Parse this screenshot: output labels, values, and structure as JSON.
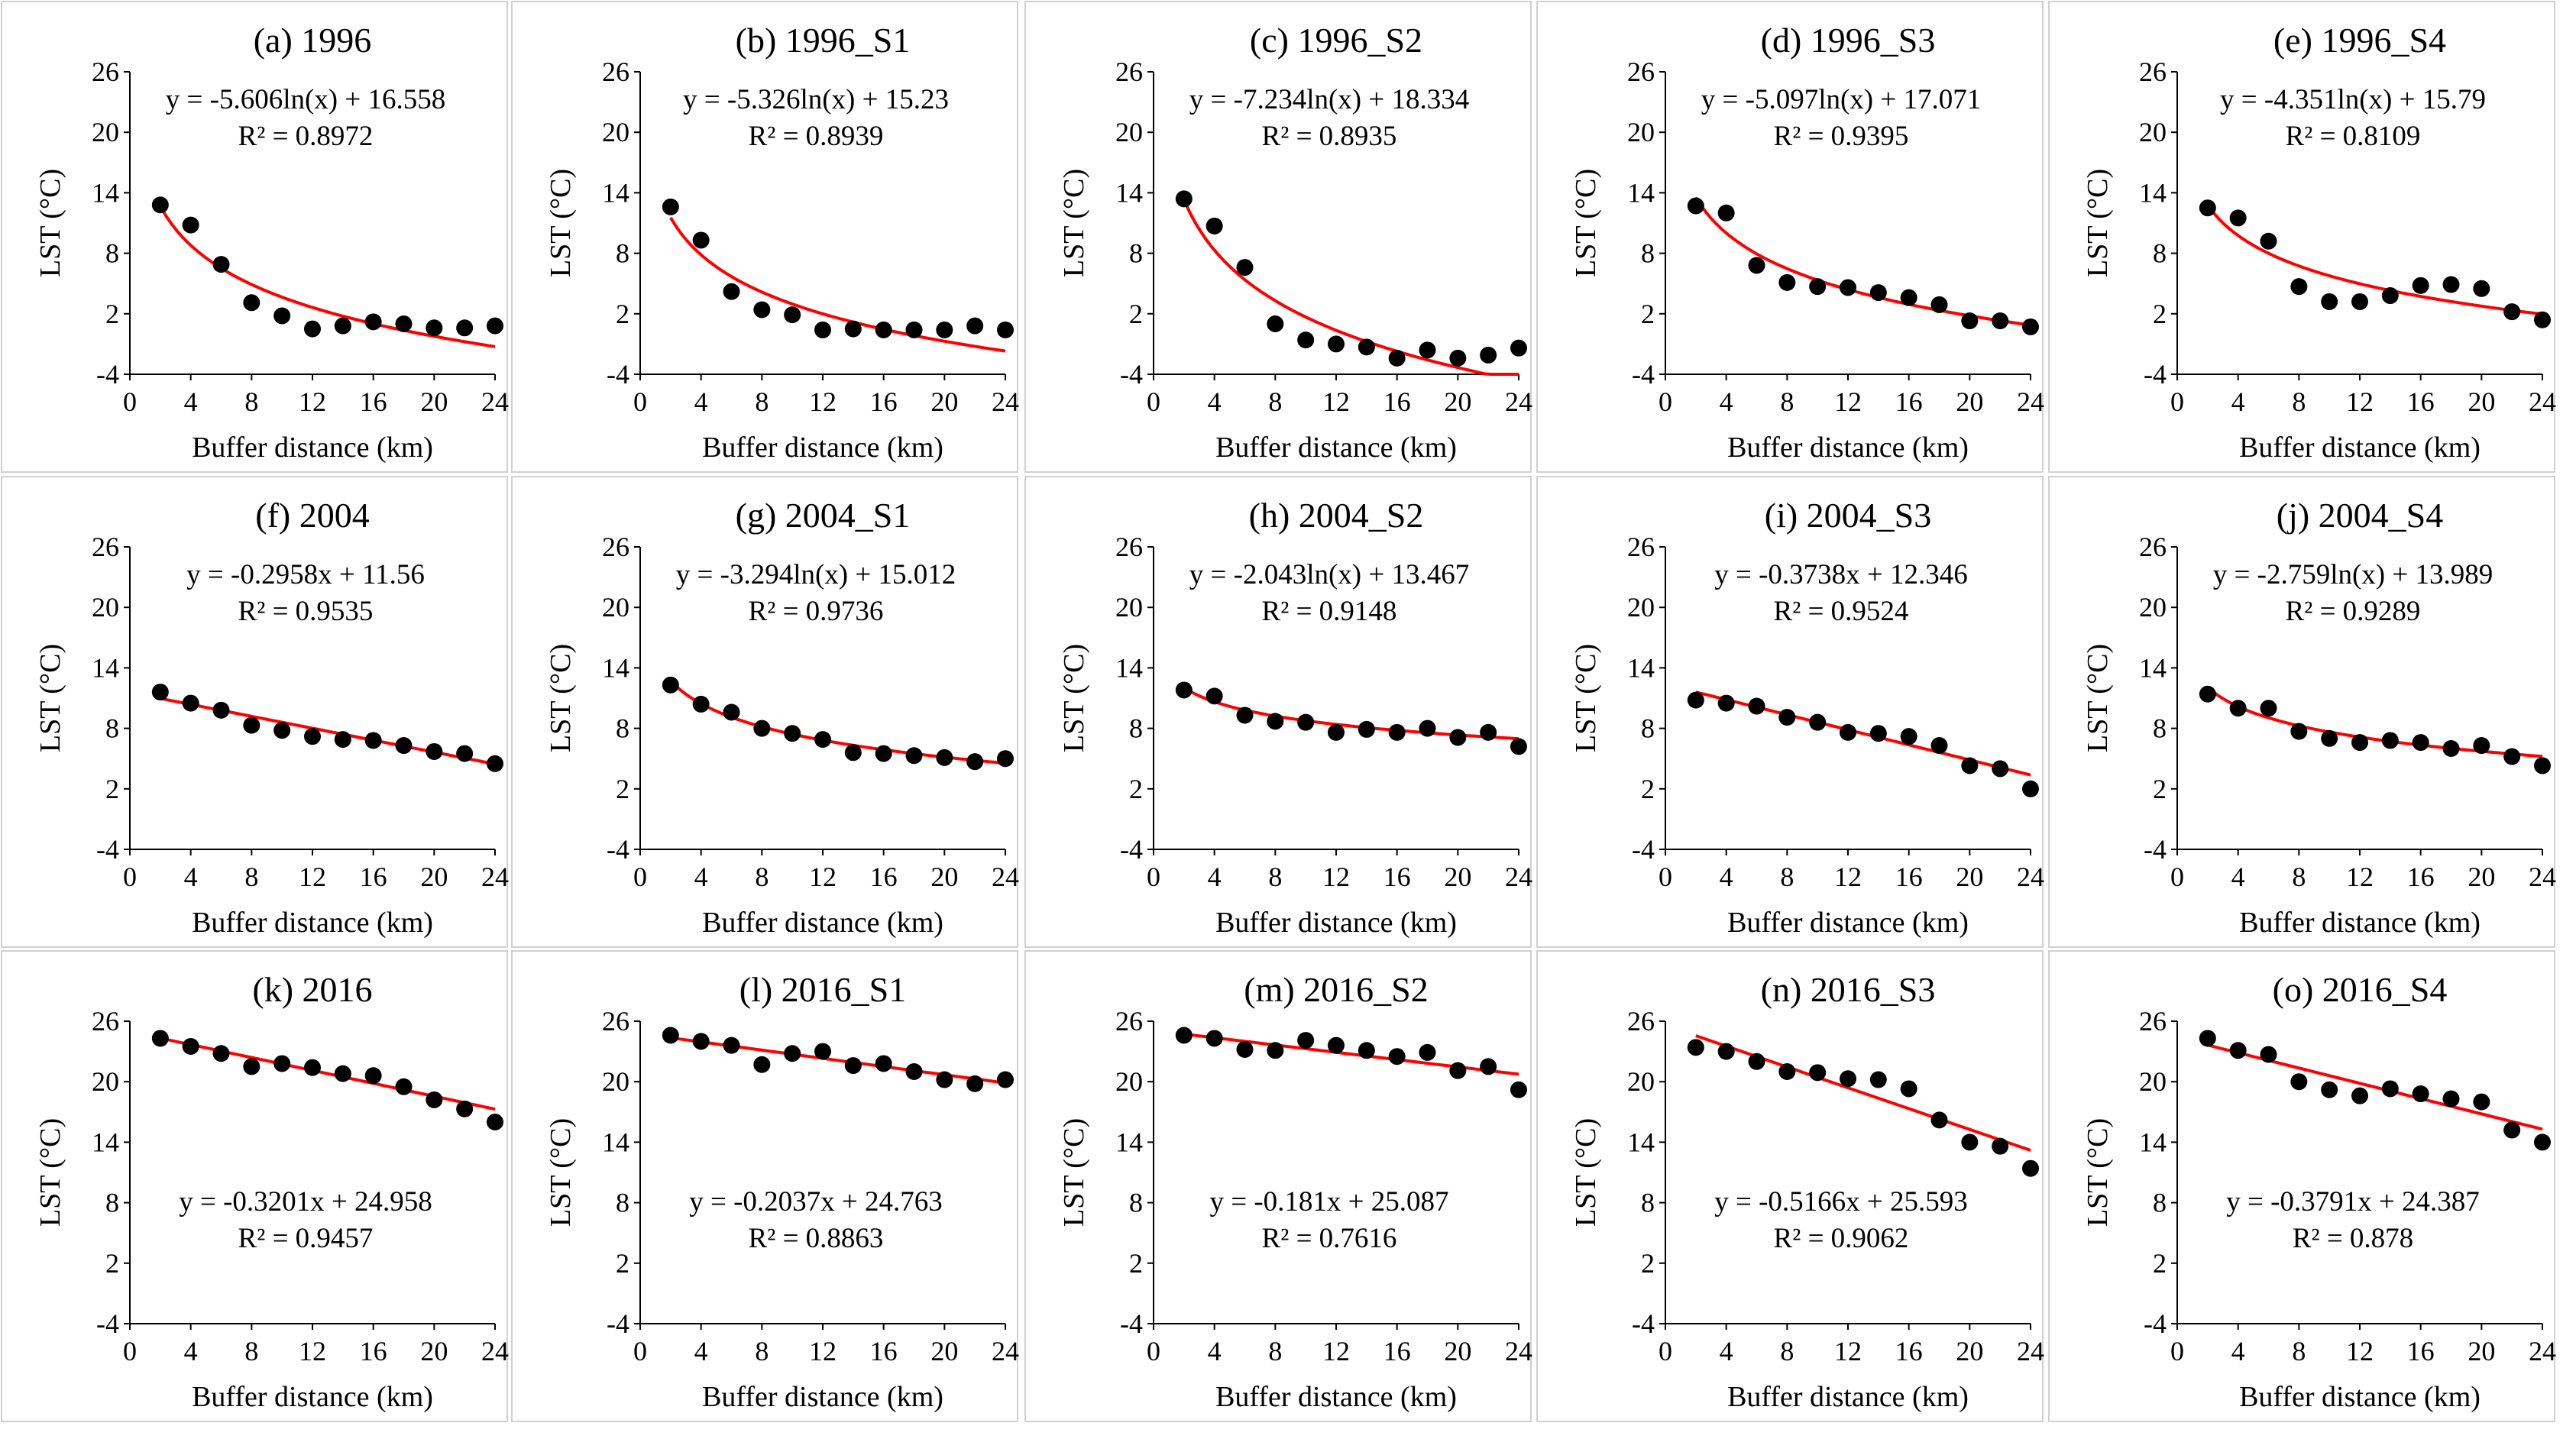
{
  "chart_data": [
    {
      "type": "scatter",
      "title": "(a) 1996",
      "xlabel": "Buffer distance (km)",
      "ylabel": "LST (°C)",
      "xlim": [
        0,
        24
      ],
      "ylim": [
        -4,
        26
      ],
      "xticks": [
        "0",
        "4",
        "8",
        "12",
        "16",
        "20",
        "24"
      ],
      "yticks": [
        "-4",
        "2",
        "8",
        "14",
        "20",
        "26"
      ],
      "x": [
        2,
        4,
        6,
        8,
        10,
        12,
        14,
        16,
        18,
        20,
        22,
        24
      ],
      "y": [
        12.8,
        10.8,
        6.9,
        3.1,
        1.8,
        0.5,
        0.8,
        1.2,
        1.0,
        0.6,
        0.6,
        0.8
      ],
      "fit": {
        "kind": "log",
        "a": -5.606,
        "b": 16.558
      },
      "equation": "y = -5.606ln(x) + 16.558",
      "r2": "R² = 0.8972",
      "eq_pos": "top"
    },
    {
      "type": "scatter",
      "title": "(b) 1996_S1",
      "xlabel": "Buffer distance (km)",
      "ylabel": "LST (°C)",
      "xlim": [
        0,
        24
      ],
      "ylim": [
        -4,
        26
      ],
      "xticks": [
        "0",
        "4",
        "8",
        "12",
        "16",
        "20",
        "24"
      ],
      "yticks": [
        "-4",
        "2",
        "8",
        "14",
        "20",
        "26"
      ],
      "x": [
        2,
        4,
        6,
        8,
        10,
        12,
        14,
        16,
        18,
        20,
        22,
        24
      ],
      "y": [
        12.6,
        9.3,
        4.2,
        2.4,
        1.9,
        0.4,
        0.5,
        0.4,
        0.4,
        0.4,
        0.8,
        0.4
      ],
      "fit": {
        "kind": "log",
        "a": -5.326,
        "b": 15.23
      },
      "equation": "y = -5.326ln(x) + 15.23",
      "r2": "R² = 0.8939",
      "eq_pos": "top"
    },
    {
      "type": "scatter",
      "title": "(c) 1996_S2",
      "xlabel": "Buffer distance (km)",
      "ylabel": "LST (°C)",
      "xlim": [
        0,
        24
      ],
      "ylim": [
        -4,
        26
      ],
      "xticks": [
        "0",
        "4",
        "8",
        "12",
        "16",
        "20",
        "24"
      ],
      "yticks": [
        "-4",
        "2",
        "8",
        "14",
        "20",
        "26"
      ],
      "x": [
        2,
        4,
        6,
        8,
        10,
        12,
        14,
        16,
        18,
        20,
        22,
        24
      ],
      "y": [
        13.4,
        10.7,
        6.6,
        1.0,
        -0.6,
        -1.0,
        -1.3,
        -2.4,
        -1.6,
        -2.4,
        -2.1,
        -1.4
      ],
      "fit": {
        "kind": "log",
        "a": -7.234,
        "b": 18.334
      },
      "equation": "y = -7.234ln(x) + 18.334",
      "r2": "R² = 0.8935",
      "eq_pos": "top"
    },
    {
      "type": "scatter",
      "title": "(d) 1996_S3",
      "xlabel": "Buffer distance (km)",
      "ylabel": "LST (°C)",
      "xlim": [
        0,
        24
      ],
      "ylim": [
        -4,
        26
      ],
      "xticks": [
        "0",
        "4",
        "8",
        "12",
        "16",
        "20",
        "24"
      ],
      "yticks": [
        "-4",
        "2",
        "8",
        "14",
        "20",
        "26"
      ],
      "x": [
        2,
        4,
        6,
        8,
        10,
        12,
        14,
        16,
        18,
        20,
        22,
        24
      ],
      "y": [
        12.7,
        12.0,
        6.8,
        5.1,
        4.7,
        4.6,
        4.1,
        3.6,
        2.9,
        1.3,
        1.3,
        0.7
      ],
      "fit": {
        "kind": "log",
        "a": -5.097,
        "b": 17.071
      },
      "equation": "y = -5.097ln(x) + 17.071",
      "r2": "R² = 0.9395",
      "eq_pos": "top"
    },
    {
      "type": "scatter",
      "title": "(e) 1996_S4",
      "xlabel": "Buffer distance (km)",
      "ylabel": "LST (°C)",
      "xlim": [
        0,
        24
      ],
      "ylim": [
        -4,
        26
      ],
      "xticks": [
        "0",
        "4",
        "8",
        "12",
        "16",
        "20",
        "24"
      ],
      "yticks": [
        "-4",
        "2",
        "8",
        "14",
        "20",
        "26"
      ],
      "x": [
        2,
        4,
        6,
        8,
        10,
        12,
        14,
        16,
        18,
        20,
        22,
        24
      ],
      "y": [
        12.5,
        11.5,
        9.2,
        4.7,
        3.2,
        3.2,
        3.8,
        4.8,
        4.9,
        4.5,
        2.2,
        1.4
      ],
      "fit": {
        "kind": "log",
        "a": -4.351,
        "b": 15.79
      },
      "equation": "y = -4.351ln(x) + 15.79",
      "r2": "R² = 0.8109",
      "eq_pos": "top"
    },
    {
      "type": "scatter",
      "title": "(f) 2004",
      "xlabel": "Buffer distance (km)",
      "ylabel": "LST (°C)",
      "xlim": [
        0,
        24
      ],
      "ylim": [
        -4,
        26
      ],
      "xticks": [
        "0",
        "4",
        "8",
        "12",
        "16",
        "20",
        "24"
      ],
      "yticks": [
        "-4",
        "2",
        "8",
        "14",
        "20",
        "26"
      ],
      "x": [
        2,
        4,
        6,
        8,
        10,
        12,
        14,
        16,
        18,
        20,
        22,
        24
      ],
      "y": [
        11.6,
        10.5,
        9.8,
        8.3,
        7.8,
        7.2,
        6.9,
        6.8,
        6.3,
        5.7,
        5.5,
        4.5
      ],
      "fit": {
        "kind": "linear",
        "a": -0.2958,
        "b": 11.56
      },
      "equation": "y = -0.2958x + 11.56",
      "r2": "R² = 0.9535",
      "eq_pos": "top"
    },
    {
      "type": "scatter",
      "title": "(g) 2004_S1",
      "xlabel": "Buffer distance (km)",
      "ylabel": "LST (°C)",
      "xlim": [
        0,
        24
      ],
      "ylim": [
        -4,
        26
      ],
      "xticks": [
        "0",
        "4",
        "8",
        "12",
        "16",
        "20",
        "24"
      ],
      "yticks": [
        "-4",
        "2",
        "8",
        "14",
        "20",
        "26"
      ],
      "x": [
        2,
        4,
        6,
        8,
        10,
        12,
        14,
        16,
        18,
        20,
        22,
        24
      ],
      "y": [
        12.3,
        10.4,
        9.6,
        8.0,
        7.5,
        6.9,
        5.6,
        5.5,
        5.3,
        5.1,
        4.7,
        5.0
      ],
      "fit": {
        "kind": "log",
        "a": -3.294,
        "b": 15.012
      },
      "equation": "y = -3.294ln(x) + 15.012",
      "r2": "R² = 0.9736",
      "eq_pos": "top"
    },
    {
      "type": "scatter",
      "title": "(h) 2004_S2",
      "xlabel": "Buffer distance (km)",
      "ylabel": "LST (°C)",
      "xlim": [
        0,
        24
      ],
      "ylim": [
        -4,
        26
      ],
      "xticks": [
        "0",
        "4",
        "8",
        "12",
        "16",
        "20",
        "24"
      ],
      "yticks": [
        "-4",
        "2",
        "8",
        "14",
        "20",
        "26"
      ],
      "x": [
        2,
        4,
        6,
        8,
        10,
        12,
        14,
        16,
        18,
        20,
        22,
        24
      ],
      "y": [
        11.8,
        11.2,
        9.3,
        8.7,
        8.6,
        7.6,
        7.9,
        7.6,
        8.0,
        7.1,
        7.6,
        6.2
      ],
      "fit": {
        "kind": "log",
        "a": -2.043,
        "b": 13.467
      },
      "equation": "y = -2.043ln(x) + 13.467",
      "r2": "R² = 0.9148",
      "eq_pos": "top"
    },
    {
      "type": "scatter",
      "title": "(i) 2004_S3",
      "xlabel": "Buffer distance (km)",
      "ylabel": "LST (°C)",
      "xlim": [
        0,
        24
      ],
      "ylim": [
        -4,
        26
      ],
      "xticks": [
        "0",
        "4",
        "8",
        "12",
        "16",
        "20",
        "24"
      ],
      "yticks": [
        "-4",
        "2",
        "8",
        "14",
        "20",
        "26"
      ],
      "x": [
        2,
        4,
        6,
        8,
        10,
        12,
        14,
        16,
        18,
        20,
        22,
        24
      ],
      "y": [
        10.8,
        10.5,
        10.2,
        9.1,
        8.6,
        7.6,
        7.5,
        7.2,
        6.3,
        4.3,
        4.0,
        2.0
      ],
      "fit": {
        "kind": "linear",
        "a": -0.3738,
        "b": 12.346
      },
      "equation": "y = -0.3738x + 12.346",
      "r2": "R² = 0.9524",
      "eq_pos": "top"
    },
    {
      "type": "scatter",
      "title": "(j) 2004_S4",
      "xlabel": "Buffer distance (km)",
      "ylabel": "LST (°C)",
      "xlim": [
        0,
        24
      ],
      "ylim": [
        -4,
        26
      ],
      "xticks": [
        "0",
        "4",
        "8",
        "12",
        "16",
        "20",
        "24"
      ],
      "yticks": [
        "-4",
        "2",
        "8",
        "14",
        "20",
        "26"
      ],
      "x": [
        2,
        4,
        6,
        8,
        10,
        12,
        14,
        16,
        18,
        20,
        22,
        24
      ],
      "y": [
        11.4,
        10.0,
        10.0,
        7.7,
        7.0,
        6.6,
        6.8,
        6.6,
        6.0,
        6.3,
        5.2,
        4.3
      ],
      "fit": {
        "kind": "log",
        "a": -2.759,
        "b": 13.989
      },
      "equation": "y = -2.759ln(x) + 13.989",
      "r2": "R² = 0.9289",
      "eq_pos": "top"
    },
    {
      "type": "scatter",
      "title": "(k) 2016",
      "xlabel": "Buffer distance (km)",
      "ylabel": "LST (°C)",
      "xlim": [
        0,
        24
      ],
      "ylim": [
        -4,
        26
      ],
      "xticks": [
        "0",
        "4",
        "8",
        "12",
        "16",
        "20",
        "24"
      ],
      "yticks": [
        "-4",
        "2",
        "8",
        "14",
        "20",
        "26"
      ],
      "x": [
        2,
        4,
        6,
        8,
        10,
        12,
        14,
        16,
        18,
        20,
        22,
        24
      ],
      "y": [
        24.3,
        23.5,
        22.8,
        21.5,
        21.8,
        21.4,
        20.8,
        20.6,
        19.5,
        18.2,
        17.3,
        16.0
      ],
      "fit": {
        "kind": "linear",
        "a": -0.3201,
        "b": 24.958
      },
      "equation": "y = -0.3201x + 24.958",
      "r2": "R² = 0.9457",
      "eq_pos": "bottom"
    },
    {
      "type": "scatter",
      "title": "(l) 2016_S1",
      "xlabel": "Buffer distance (km)",
      "ylabel": "LST (°C)",
      "xlim": [
        0,
        24
      ],
      "ylim": [
        -4,
        26
      ],
      "xticks": [
        "0",
        "4",
        "8",
        "12",
        "16",
        "20",
        "24"
      ],
      "yticks": [
        "-4",
        "2",
        "8",
        "14",
        "20",
        "26"
      ],
      "x": [
        2,
        4,
        6,
        8,
        10,
        12,
        14,
        16,
        18,
        20,
        22,
        24
      ],
      "y": [
        24.6,
        24.0,
        23.6,
        21.7,
        22.8,
        23.0,
        21.6,
        21.8,
        21.0,
        20.2,
        19.8,
        20.2
      ],
      "fit": {
        "kind": "linear",
        "a": -0.2037,
        "b": 24.763
      },
      "equation": "y = -0.2037x + 24.763",
      "r2": "R² = 0.8863",
      "eq_pos": "bottom"
    },
    {
      "type": "scatter",
      "title": "(m) 2016_S2",
      "xlabel": "Buffer distance (km)",
      "ylabel": "LST (°C)",
      "xlim": [
        0,
        24
      ],
      "ylim": [
        -4,
        26
      ],
      "xticks": [
        "0",
        "4",
        "8",
        "12",
        "16",
        "20",
        "24"
      ],
      "yticks": [
        "-4",
        "2",
        "8",
        "14",
        "20",
        "26"
      ],
      "x": [
        2,
        4,
        6,
        8,
        10,
        12,
        14,
        16,
        18,
        20,
        22,
        24
      ],
      "y": [
        24.6,
        24.3,
        23.2,
        23.1,
        24.1,
        23.6,
        23.1,
        22.5,
        22.9,
        21.1,
        21.5,
        19.2
      ],
      "fit": {
        "kind": "linear",
        "a": -0.181,
        "b": 25.087
      },
      "equation": "y = -0.181x + 25.087",
      "r2": "R² = 0.7616",
      "eq_pos": "bottom"
    },
    {
      "type": "scatter",
      "title": "(n) 2016_S3",
      "xlabel": "Buffer distance (km)",
      "ylabel": "LST (°C)",
      "xlim": [
        0,
        24
      ],
      "ylim": [
        -4,
        26
      ],
      "xticks": [
        "0",
        "4",
        "8",
        "12",
        "16",
        "20",
        "24"
      ],
      "yticks": [
        "-4",
        "2",
        "8",
        "14",
        "20",
        "26"
      ],
      "x": [
        2,
        4,
        6,
        8,
        10,
        12,
        14,
        16,
        18,
        20,
        22,
        24
      ],
      "y": [
        23.4,
        23.0,
        22.0,
        21.0,
        20.9,
        20.3,
        20.2,
        19.3,
        16.2,
        14.0,
        13.6,
        11.4
      ],
      "fit": {
        "kind": "linear",
        "a": -0.5166,
        "b": 25.593
      },
      "equation": "y = -0.5166x + 25.593",
      "r2": "R² = 0.9062",
      "eq_pos": "bottom"
    },
    {
      "type": "scatter",
      "title": "(o) 2016_S4",
      "xlabel": "Buffer distance (km)",
      "ylabel": "LST (°C)",
      "xlim": [
        0,
        24
      ],
      "ylim": [
        -4,
        26
      ],
      "xticks": [
        "0",
        "4",
        "8",
        "12",
        "16",
        "20",
        "24"
      ],
      "yticks": [
        "-4",
        "2",
        "8",
        "14",
        "20",
        "26"
      ],
      "x": [
        2,
        4,
        6,
        8,
        10,
        12,
        14,
        16,
        18,
        20,
        22,
        24
      ],
      "y": [
        24.3,
        23.1,
        22.7,
        20.0,
        19.2,
        18.6,
        19.3,
        18.8,
        18.3,
        18.0,
        15.2,
        14.0
      ],
      "fit": {
        "kind": "linear",
        "a": -0.3791,
        "b": 24.387
      },
      "equation": "y = -0.3791x + 24.387",
      "r2": "R² = 0.878",
      "eq_pos": "bottom"
    }
  ],
  "colors": {
    "fit_line": "#ff0000",
    "points": "#000000",
    "axes": "#000000",
    "panel_border": "#d0d0d0"
  }
}
